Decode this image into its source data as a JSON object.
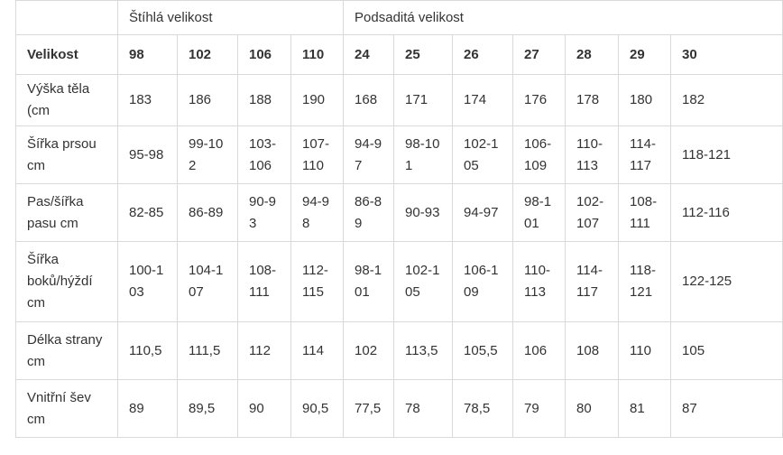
{
  "table": {
    "groups": {
      "corner": "",
      "slim": "Štíhlá velikost",
      "short": "Podsaditá velikost"
    },
    "header": {
      "label": "Velikost",
      "sizes": [
        "98",
        "102",
        "106",
        "110",
        "24",
        "25",
        "26",
        "27",
        "28",
        "29",
        "30"
      ]
    },
    "rows": [
      {
        "label": "Výška těla (cm",
        "values": [
          "183",
          "186",
          "188",
          "190",
          "168",
          "171",
          "174",
          "176",
          "178",
          "180",
          "182"
        ]
      },
      {
        "label": "Šířka prsou cm",
        "values": [
          "95-98",
          "99-102",
          "103-106",
          "107-110",
          "94-97",
          "98-101",
          "102-105",
          "106-109",
          "110-113",
          "114-117",
          "118-121"
        ]
      },
      {
        "label": "Pas/šířka pasu cm",
        "values": [
          "82-85",
          "86-89",
          "90-93",
          "94-98",
          "86-89",
          "90-93",
          "94-97",
          "98-101",
          "102-107",
          "108-111",
          "112-116"
        ]
      },
      {
        "label": "Šířka boků/hýždí cm",
        "values": [
          "100-103",
          "104-107",
          "108-111",
          "112-115",
          "98-101",
          "102-105",
          "106-109",
          "110-113",
          "114-117",
          "118-121",
          "122-125"
        ]
      },
      {
        "label": "Délka strany cm",
        "values": [
          "110,5",
          "111,5",
          "112",
          "114",
          "102",
          "113,5",
          "105,5",
          "106",
          "108",
          "110",
          "105"
        ]
      },
      {
        "label": "Vnitřní šev cm",
        "values": [
          "89",
          "89,5",
          "90",
          "90,5",
          "77,5",
          "78",
          "78,5",
          "79",
          "80",
          "81",
          "87"
        ]
      }
    ]
  }
}
